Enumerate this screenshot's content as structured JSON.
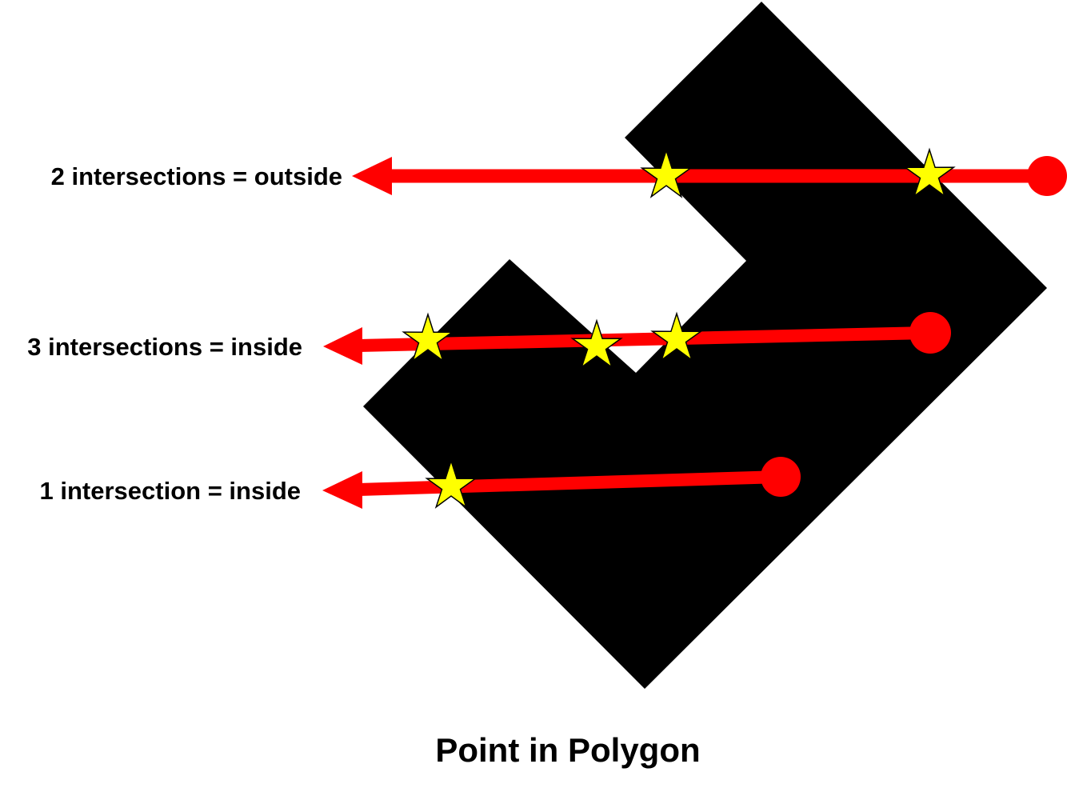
{
  "title": "Point in Polygon",
  "colors": {
    "polygon": "#000000",
    "ray": "#ff0000",
    "intersection_marker": "#ffff00",
    "marker_outline": "#000000",
    "background": "#ffffff"
  },
  "rays": [
    {
      "id": "ray-outside",
      "label": "2 intersections = outside",
      "intersections": 2,
      "result": "outside"
    },
    {
      "id": "ray-inside-3",
      "label": "3 intersections = inside",
      "intersections": 3,
      "result": "inside"
    },
    {
      "id": "ray-inside-1",
      "label": "1 intersection = inside",
      "intersections": 1,
      "result": "inside"
    }
  ],
  "icons": {
    "intersection": "star-icon",
    "start_point": "circle-dot-icon",
    "direction": "arrow-left-icon"
  }
}
